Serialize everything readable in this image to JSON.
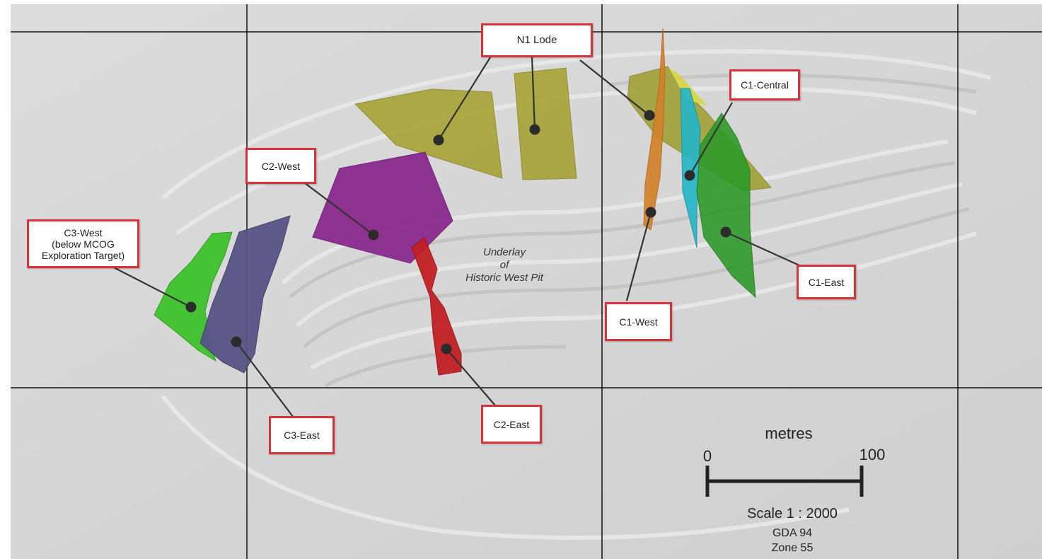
{
  "colors": {
    "background": "#d6d6d6",
    "grid": "#111111",
    "label_border": "#d8333b",
    "n1_lode": "#a9a43a",
    "c1_west": "#d2822a",
    "c1_central": "#27b6c6",
    "c1_east": "#2f9a2a",
    "c2_west": "#8a2a8e",
    "c2_east": "#c21f24",
    "c3_west": "#3fc12d",
    "c3_east": "#575486"
  },
  "labels": {
    "n1_lode": "N1 Lode",
    "c1_central": "C1-Central",
    "c2_west": "C2-West",
    "c3_west": "C3-West\n(below MCOG\nExploration Target)",
    "c1_east": "C1-East",
    "c1_west": "C1-West",
    "c3_east": "C3-East",
    "c2_east": "C2-East"
  },
  "underlay": "Underlay\nof\nHistoric West Pit",
  "scale": {
    "units": "metres",
    "start": "0",
    "end": "100",
    "ratio": "Scale 1 : 2000",
    "datum": "GDA 94",
    "zone": "Zone 55"
  }
}
